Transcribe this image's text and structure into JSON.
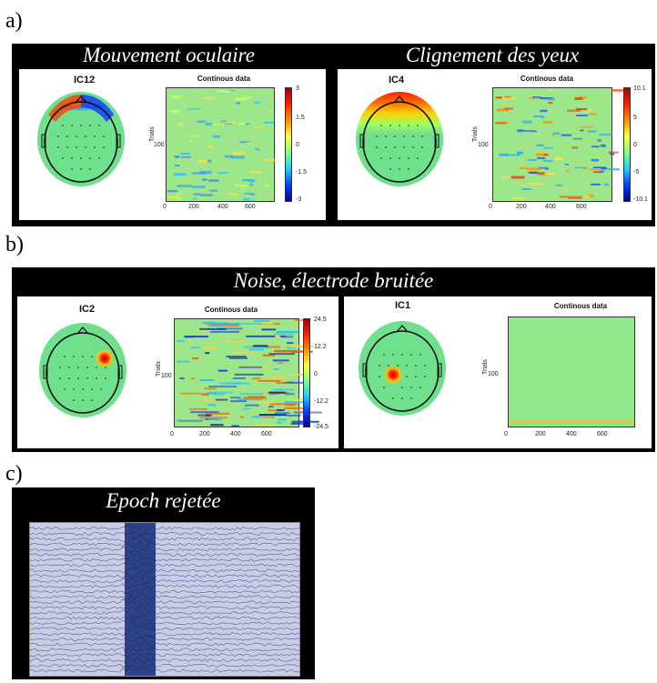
{
  "sections": {
    "a": {
      "label": "a)",
      "left": {
        "title": "Mouvement oculaire",
        "component": "IC12",
        "plot_title": "Continous data",
        "ylabel": "Trials",
        "ytick": "100",
        "xticks": [
          "0",
          "200",
          "400",
          "600"
        ],
        "cbar_ticks": [
          "3",
          "1.5",
          "0",
          "-1.5",
          "-3"
        ]
      },
      "right": {
        "title": "Clignement des yeux",
        "component": "IC4",
        "plot_title": "Continous data",
        "ylabel": "Trials",
        "ytick": "100",
        "xticks": [
          "0",
          "200",
          "400",
          "600"
        ],
        "cbar_ticks": [
          "10.1",
          "5",
          "0",
          "-5",
          "-10.1"
        ]
      }
    },
    "b": {
      "label": "b)",
      "title": "Noise, électrode bruitée",
      "left": {
        "component": "IC2",
        "plot_title": "Continous data",
        "ylabel": "Trials",
        "ytick": "100",
        "xticks": [
          "0",
          "200",
          "400",
          "600"
        ],
        "cbar_ticks": [
          "24.5",
          "12.2",
          "0",
          "-12.2",
          "-24.5"
        ]
      },
      "right": {
        "component": "IC1",
        "plot_title": "Continous data",
        "ylabel": "Trials",
        "ytick": "100",
        "xticks": [
          "0",
          "200",
          "400",
          "600"
        ]
      }
    },
    "c": {
      "label": "c)",
      "title": "Epoch rejetée"
    }
  },
  "colors": {
    "panel_bg": "#000000",
    "heat_base": "#9ee68a",
    "head_fill": "#6fe08c",
    "epoch_trace": "#2d3a8c",
    "epoch_artifact": "#0a1f6e"
  }
}
